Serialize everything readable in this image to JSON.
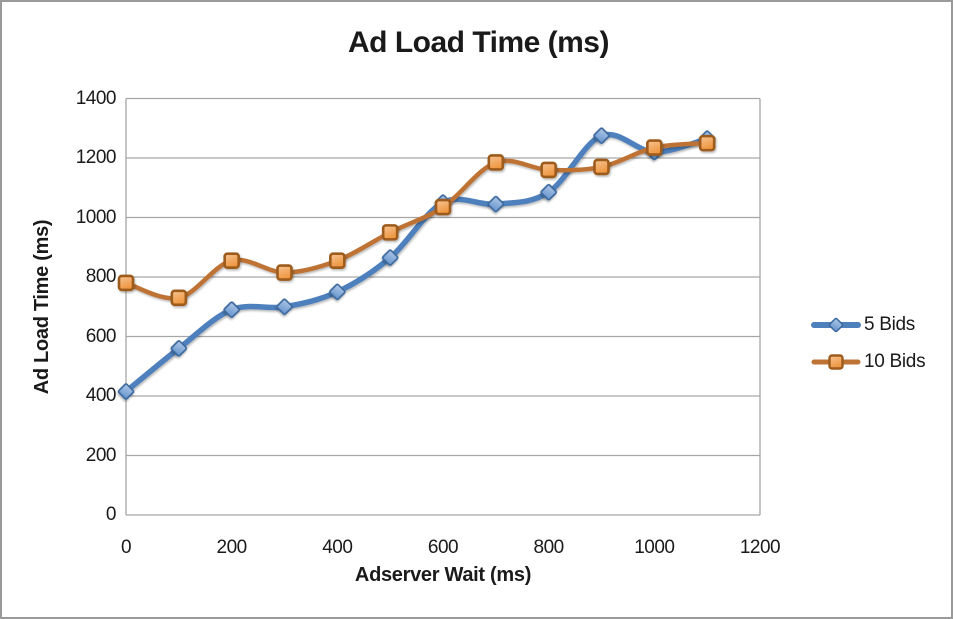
{
  "chart_data": {
    "type": "line",
    "title": "Ad Load Time (ms)",
    "xlabel": "Adserver Wait (ms)",
    "ylabel": "Ad Load Time (ms)",
    "x": [
      0,
      100,
      200,
      300,
      400,
      500,
      600,
      700,
      800,
      900,
      1000,
      1100
    ],
    "series": [
      {
        "name": "5 Bids",
        "marker": "diamond",
        "line_color": "#4e80bc",
        "marker_fill": "#6f9bd1",
        "marker_edge": "#3b689d",
        "line_width": 5.5,
        "values": [
          415,
          560,
          690,
          700,
          750,
          865,
          1050,
          1045,
          1085,
          1275,
          1220,
          1265
        ]
      },
      {
        "name": "10 Bids",
        "marker": "square",
        "line_color": "#be7334",
        "marker_fill": "#ef963f",
        "marker_edge": "#9d5b1e",
        "line_width": 4.5,
        "values": [
          780,
          730,
          855,
          815,
          855,
          950,
          1035,
          1185,
          1160,
          1170,
          1235,
          1250
        ]
      }
    ],
    "xticks": [
      0,
      200,
      400,
      600,
      800,
      1000,
      1200
    ],
    "yticks": [
      0,
      200,
      400,
      600,
      800,
      1000,
      1200,
      1400
    ],
    "xlim": [
      0,
      1200
    ],
    "ylim": [
      0,
      1400
    ],
    "grid": "horizontal",
    "grid_color": "#a6a6a6",
    "legend_position": "right",
    "smooth_lines": true
  }
}
